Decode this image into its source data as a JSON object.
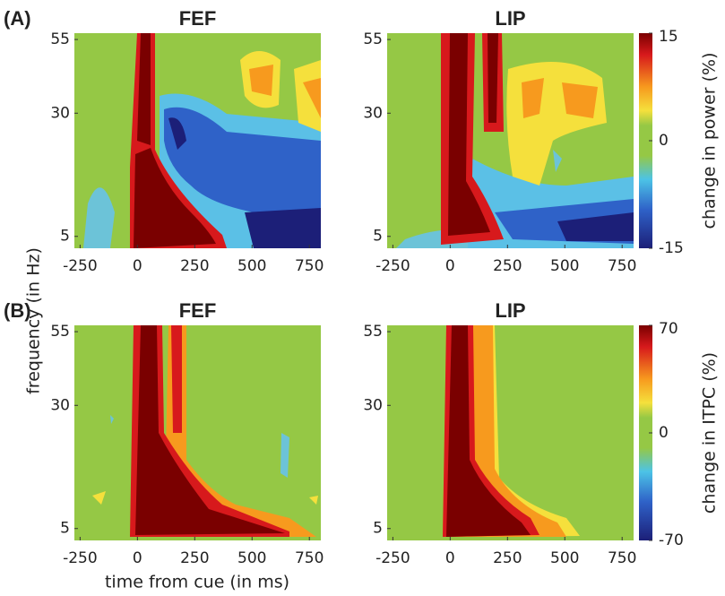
{
  "chart_data": [
    {
      "type": "heatmap",
      "panel_label": "(A)",
      "title": "FEF",
      "xlim": [
        -275,
        800
      ],
      "xticks": [
        -250,
        0,
        250,
        500,
        750
      ],
      "ylim": [
        3.7,
        57.5
      ],
      "yticks": [
        5,
        30,
        55
      ],
      "yscale": "sqrt"
    },
    {
      "type": "heatmap",
      "title": "LIP",
      "xlim": [
        -275,
        800
      ],
      "xticks": [
        -250,
        0,
        250,
        500,
        750
      ],
      "ylim": [
        3.7,
        57.5
      ],
      "yticks": [
        5,
        30,
        55
      ],
      "yscale": "sqrt",
      "colorbar": {
        "label": "change in power (%)",
        "lim": [
          -15,
          15
        ],
        "ticks": [
          -15,
          0,
          15
        ]
      }
    },
    {
      "type": "heatmap",
      "panel_label": "(B)",
      "title": "FEF",
      "x_label": "time from cue (in ms)",
      "y_label": "frequency (in Hz)",
      "xlim": [
        -275,
        800
      ],
      "xticks": [
        -250,
        0,
        250,
        500,
        750
      ],
      "ylim": [
        3.7,
        57.5
      ],
      "yticks": [
        5,
        30,
        55
      ],
      "yscale": "sqrt"
    },
    {
      "type": "heatmap",
      "title": "LIP",
      "xlim": [
        -275,
        800
      ],
      "xticks": [
        -250,
        0,
        250,
        500,
        750
      ],
      "ylim": [
        3.7,
        57.5
      ],
      "yticks": [
        5,
        30,
        55
      ],
      "yscale": "sqrt",
      "colorbar": {
        "label": "change in ITPC (%)",
        "lim": [
          -70,
          70
        ],
        "ticks": [
          -70,
          0,
          70
        ]
      }
    }
  ]
}
